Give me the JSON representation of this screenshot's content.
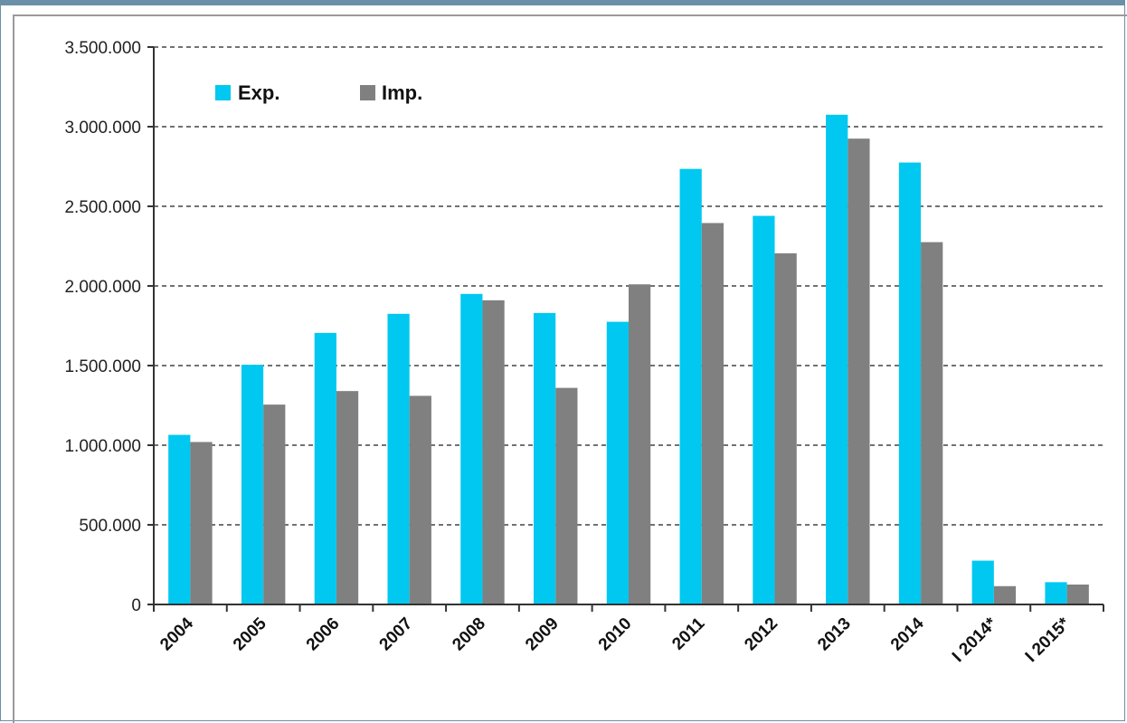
{
  "chart_data": {
    "type": "bar",
    "categories": [
      "2004",
      "2005",
      "2006",
      "2007",
      "2008",
      "2009",
      "2010",
      "2011",
      "2012",
      "2013",
      "2014",
      "I 2014*",
      "I 2015*"
    ],
    "series": [
      {
        "name": "Exp.",
        "color": "#00c8f0",
        "values": [
          1065000,
          1505000,
          1705000,
          1825000,
          1950000,
          1830000,
          1775000,
          2735000,
          2440000,
          3075000,
          2775000,
          275000,
          140000
        ]
      },
      {
        "name": "Imp.",
        "color": "#808080",
        "values": [
          1020000,
          1255000,
          1340000,
          1310000,
          1910000,
          1360000,
          2010000,
          2395000,
          2205000,
          2925000,
          2275000,
          115000,
          125000
        ]
      }
    ],
    "ylim": [
      0,
      3500000
    ],
    "yticks": [
      "0",
      "500.000",
      "1.000.000",
      "1.500.000",
      "2.000.000",
      "2.500.000",
      "3.000.000",
      "3.500.000"
    ],
    "ytick_values": [
      0,
      500000,
      1000000,
      1500000,
      2000000,
      2500000,
      3000000,
      3500000
    ],
    "grid": "horizontal-dashed",
    "legend_position": "top-left",
    "title": "",
    "xlabel": "",
    "ylabel": ""
  }
}
